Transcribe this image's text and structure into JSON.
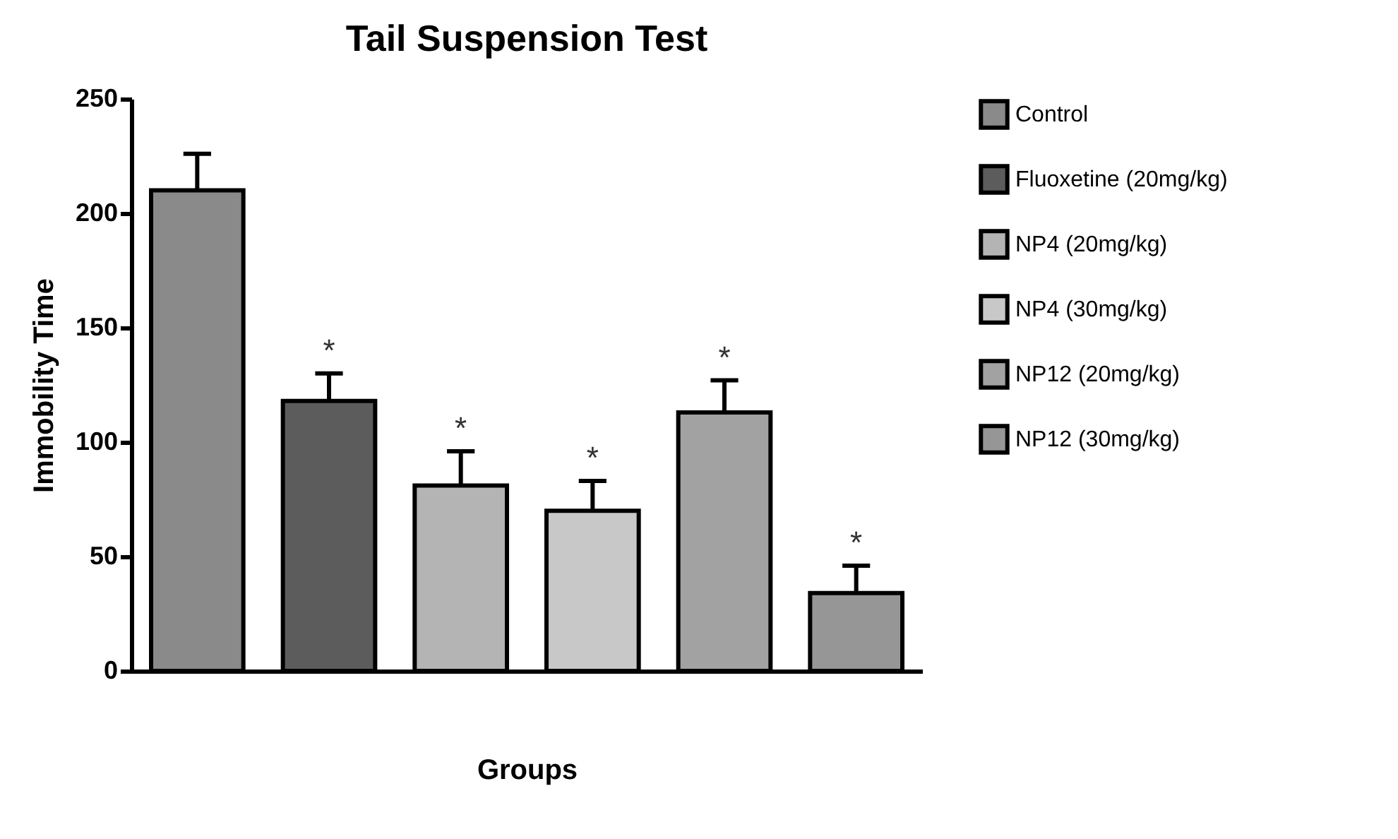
{
  "chart_data": {
    "type": "bar",
    "title": "Tail Suspension Test",
    "xlabel": "Groups",
    "ylabel": "Immobility Time",
    "categories": [
      null,
      null,
      null,
      null,
      null,
      null
    ],
    "series": [
      {
        "name": "Control",
        "color": "#8a8a8a",
        "values": [
          210,
          null,
          null,
          null,
          null,
          null
        ],
        "errors": [
          16,
          null,
          null,
          null,
          null,
          null
        ],
        "value_labels": [
          null,
          null,
          null,
          null,
          null,
          null
        ]
      },
      {
        "name": "Fluoxetine (20mg/kg)",
        "color": "#5c5c5c",
        "values": [
          null,
          118,
          null,
          null,
          null,
          null
        ],
        "errors": [
          null,
          12,
          null,
          null,
          null,
          null
        ],
        "value_labels": [
          null,
          "*",
          null,
          null,
          null,
          null
        ]
      },
      {
        "name": "NP4 (20mg/kg)",
        "color": "#b4b4b4",
        "values": [
          null,
          null,
          81,
          null,
          null,
          null
        ],
        "errors": [
          null,
          null,
          15,
          null,
          null,
          null
        ],
        "value_labels": [
          null,
          null,
          "*",
          null,
          null,
          null
        ]
      },
      {
        "name": "NP4 (30mg/kg)",
        "color": "#c8c8c8",
        "values": [
          null,
          null,
          null,
          70,
          null,
          null
        ],
        "errors": [
          null,
          null,
          null,
          13,
          null,
          null
        ],
        "value_labels": [
          null,
          null,
          null,
          "*",
          null,
          null
        ]
      },
      {
        "name": "NP12 (20mg/kg)",
        "color": "#a2a2a2",
        "values": [
          null,
          null,
          null,
          null,
          113,
          null
        ],
        "errors": [
          null,
          null,
          null,
          null,
          14,
          null
        ],
        "value_labels": [
          null,
          null,
          null,
          null,
          "*",
          null
        ]
      },
      {
        "name": "NP12 (30mg/kg)",
        "color": "#969696",
        "values": [
          null,
          null,
          null,
          null,
          null,
          34
        ],
        "errors": [
          null,
          null,
          null,
          null,
          null,
          12
        ],
        "value_labels": [
          null,
          null,
          null,
          null,
          null,
          "*"
        ]
      }
    ],
    "ylim": [
      0,
      250
    ],
    "yticks": [
      0,
      50,
      100,
      150,
      200,
      250
    ],
    "grid": false,
    "legend": "right"
  }
}
